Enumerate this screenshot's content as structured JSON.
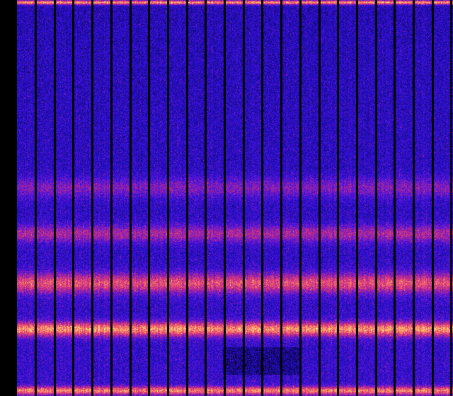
{
  "image": {
    "kind": "spectrogram",
    "colormap": [
      "#000000",
      "#1a0a8c",
      "#2a10d8",
      "#6a18d0",
      "#b02890",
      "#e8407a",
      "#f89060",
      "#fce080",
      "#ffffc8"
    ],
    "background_color": "#000000",
    "separator_color": "#000000"
  }
}
